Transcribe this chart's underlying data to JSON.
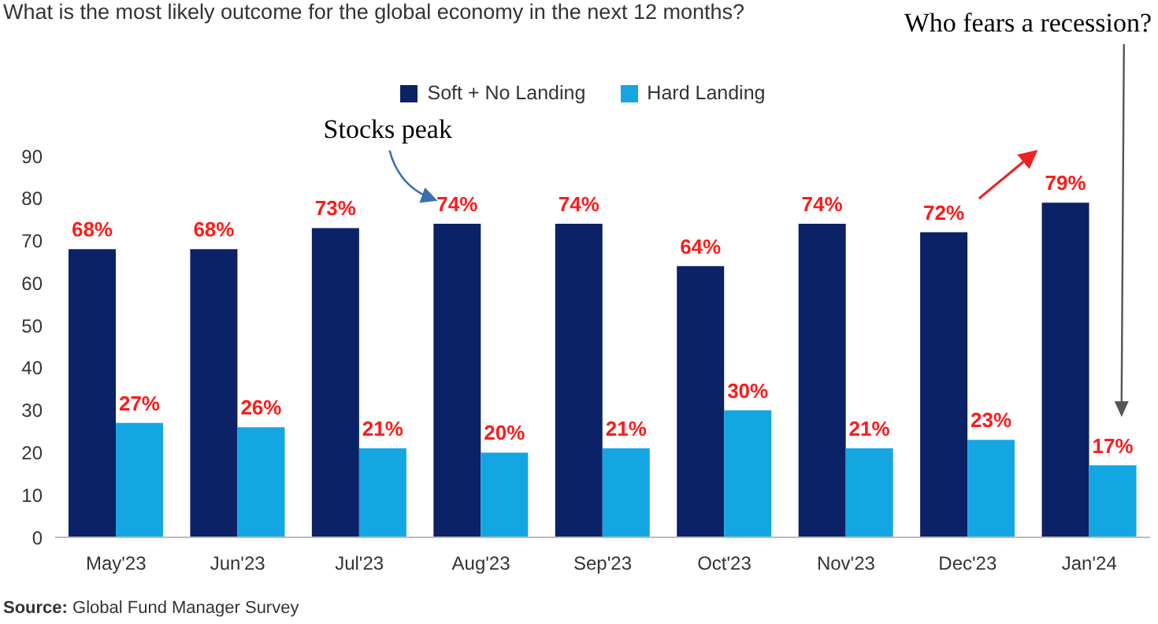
{
  "chart_data": {
    "type": "bar",
    "title": "What is the most likely outcome for the global economy in the next 12 months?",
    "categories": [
      "May'23",
      "Jun'23",
      "Jul'23",
      "Aug'23",
      "Sep'23",
      "Oct'23",
      "Nov'23",
      "Dec'23",
      "Jan'24"
    ],
    "series": [
      {
        "name": "Soft + No Landing",
        "color": "#0c2266",
        "values": [
          68,
          68,
          73,
          74,
          74,
          64,
          74,
          72,
          79
        ],
        "value_labels": [
          "68%",
          "68%",
          "73%",
          "74%",
          "74%",
          "64%",
          "74%",
          "72%",
          "79%"
        ]
      },
      {
        "name": "Hard Landing",
        "color": "#14a6e3",
        "values": [
          27,
          26,
          21,
          20,
          21,
          30,
          21,
          23,
          17
        ],
        "value_labels": [
          "27%",
          "26%",
          "21%",
          "20%",
          "21%",
          "30%",
          "21%",
          "23%",
          "17%"
        ]
      }
    ],
    "ylim": [
      0,
      90
    ],
    "yticks": [
      0,
      10,
      20,
      30,
      40,
      50,
      60,
      70,
      80,
      90
    ],
    "legend": "top",
    "annotations": [
      "Stocks peak",
      "Who fears a recession?",
      "Source: Global Fund Manager Survey"
    ]
  }
}
